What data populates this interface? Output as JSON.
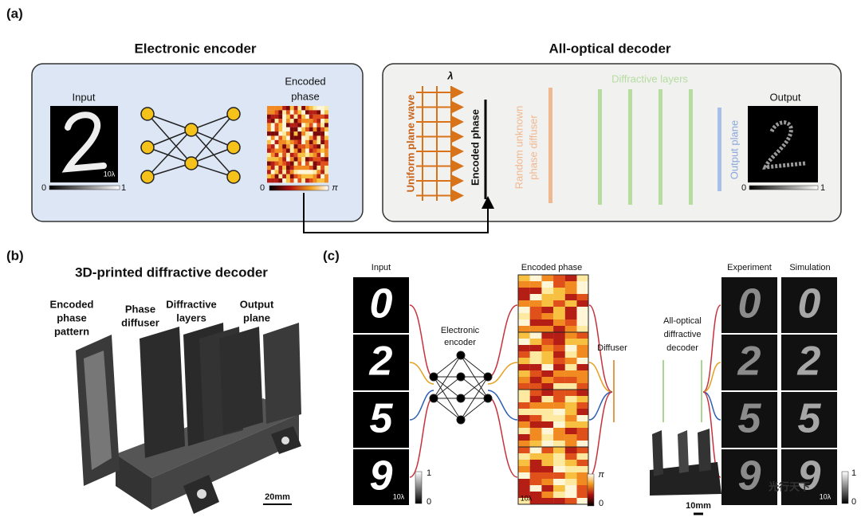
{
  "panel_a": {
    "label": "(a)",
    "encoder_title": "Electronic encoder",
    "decoder_title": "All-optical decoder",
    "input_label": "Input",
    "input_scale": "10λ",
    "input_bar_min": "0",
    "input_bar_max": "1",
    "encoded_label": [
      "Encoded",
      "phase"
    ],
    "encoded_bar_min": "0",
    "encoded_bar_max": "π",
    "wavelength": "λ",
    "plane_wave": "Uniform plane wave",
    "encoded_phase_vertical": "Encoded phase",
    "diffuser": [
      "Random unknown",
      "phase diffuser"
    ],
    "diffractive_layers": "Diffractive layers",
    "output_plane": "Output plane",
    "output_label": "Output",
    "output_bar_min": "0",
    "output_bar_max": "1"
  },
  "panel_b": {
    "label": "(b)",
    "title": "3D-printed diffractive decoder",
    "parts": [
      [
        "Encoded",
        "phase",
        "pattern"
      ],
      [
        "Phase",
        "diffuser"
      ],
      [
        "Diffractive",
        "layers"
      ],
      [
        "Output",
        "plane"
      ]
    ],
    "scale": "20mm"
  },
  "panel_c": {
    "label": "(c)",
    "input_label": "Input",
    "input_digits": [
      "0",
      "2",
      "5",
      "9"
    ],
    "input_bar_max": "1",
    "input_bar_min": "0",
    "input_scale": "10λ",
    "encoder_label": [
      "Electronic",
      "encoder"
    ],
    "encoded_label": "Encoded phase",
    "encoded_bar_max": "π",
    "encoded_bar_min": "0",
    "encoded_scale": "10λ",
    "diffuser_label": "Diffuser",
    "decoder_label": [
      "All-optical",
      "diffractive",
      "decoder"
    ],
    "device_scale": "10mm",
    "experiment_label": "Experiment",
    "simulation_label": "Simulation",
    "experiment_digits": [
      "0",
      "2",
      "5",
      "9"
    ],
    "simulation_digits": [
      "0",
      "2",
      "5",
      "9"
    ],
    "output_bar_max": "1",
    "output_bar_min": "0",
    "output_scale": "10λ",
    "watermark": "光行天下"
  }
}
